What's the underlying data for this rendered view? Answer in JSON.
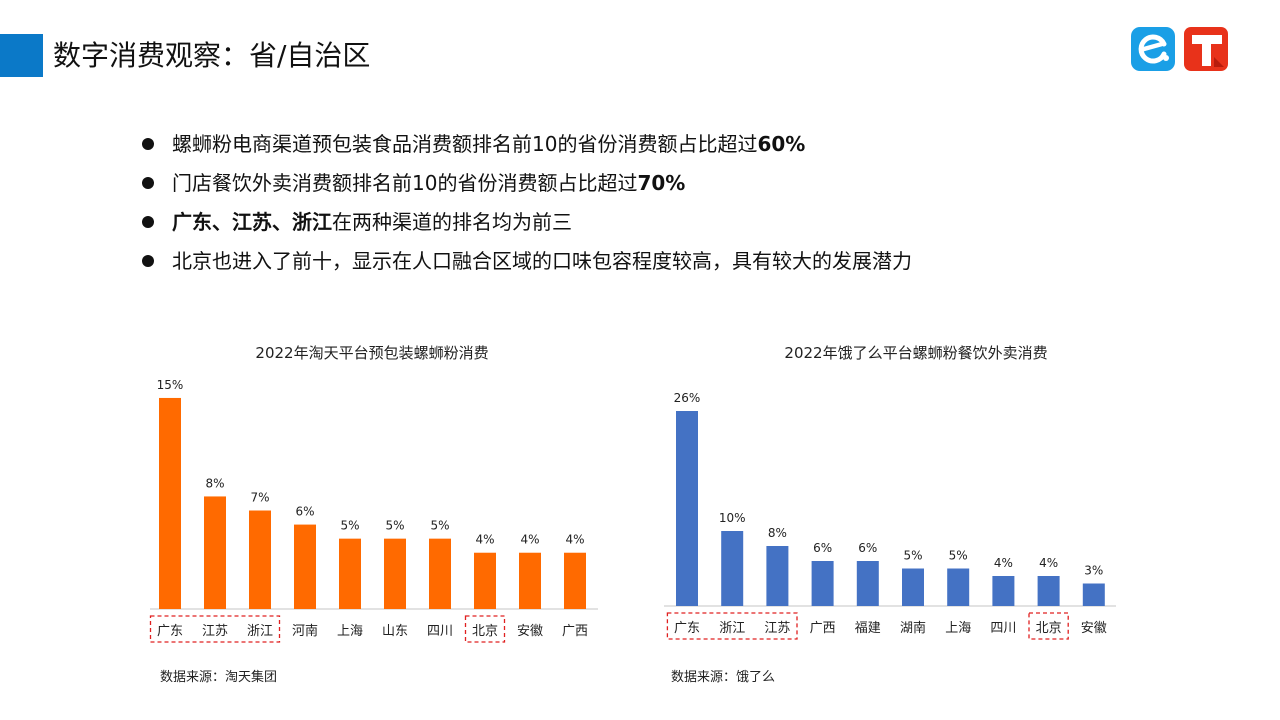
{
  "header": {
    "title": "数字消费观察：省/自治区",
    "accent_color": "#0b79c8",
    "logos": [
      "eleme-logo",
      "taotian-logo"
    ]
  },
  "bullets": [
    {
      "parts": [
        {
          "text": "螺蛳粉电商渠道预包装食品消费额排名前10的省份消费额占比超过",
          "bold": false
        },
        {
          "text": "60%",
          "bold": true
        }
      ]
    },
    {
      "parts": [
        {
          "text": "门店餐饮外卖消费额排名前10的省份消费额占比超过",
          "bold": false
        },
        {
          "text": "70%",
          "bold": true
        }
      ]
    },
    {
      "parts": [
        {
          "text": "广东、江苏、浙江",
          "bold": true
        },
        {
          "text": "在两种渠道的排名均为前三",
          "bold": false
        }
      ]
    },
    {
      "parts": [
        {
          "text": "北京也进入了前十，显示在人口融合区域的口味包容程度较高，具有较大的发展潜力",
          "bold": false
        }
      ]
    }
  ],
  "chart_data": [
    {
      "type": "bar",
      "title": "2022年淘天平台预包装螺蛳粉消费",
      "categories": [
        "广东",
        "江苏",
        "浙江",
        "河南",
        "上海",
        "山东",
        "四川",
        "北京",
        "安徽",
        "广西"
      ],
      "values": [
        15,
        8,
        7,
        6,
        5,
        5,
        5,
        4,
        4,
        4
      ],
      "value_labels": [
        "15%",
        "8%",
        "7%",
        "6%",
        "5%",
        "5%",
        "5%",
        "4%",
        "4%",
        "4%"
      ],
      "unit": "%",
      "color": "#ff6a00",
      "highlighted_categories": [
        [
          "广东",
          "江苏",
          "浙江"
        ],
        [
          "北京"
        ]
      ],
      "source": "数据来源：淘天集团"
    },
    {
      "type": "bar",
      "title": "2022年饿了么平台螺蛳粉餐饮外卖消费",
      "categories": [
        "广东",
        "浙江",
        "江苏",
        "广西",
        "福建",
        "湖南",
        "上海",
        "四川",
        "北京",
        "安徽"
      ],
      "values": [
        26,
        10,
        8,
        6,
        6,
        5,
        5,
        4,
        4,
        3
      ],
      "value_labels": [
        "26%",
        "10%",
        "8%",
        "6%",
        "6%",
        "5%",
        "5%",
        "4%",
        "4%",
        "3%"
      ],
      "unit": "%",
      "color": "#4472c4",
      "highlighted_categories": [
        [
          "广东",
          "浙江",
          "江苏"
        ],
        [
          "北京"
        ]
      ],
      "source": "数据来源：饿了么"
    }
  ]
}
